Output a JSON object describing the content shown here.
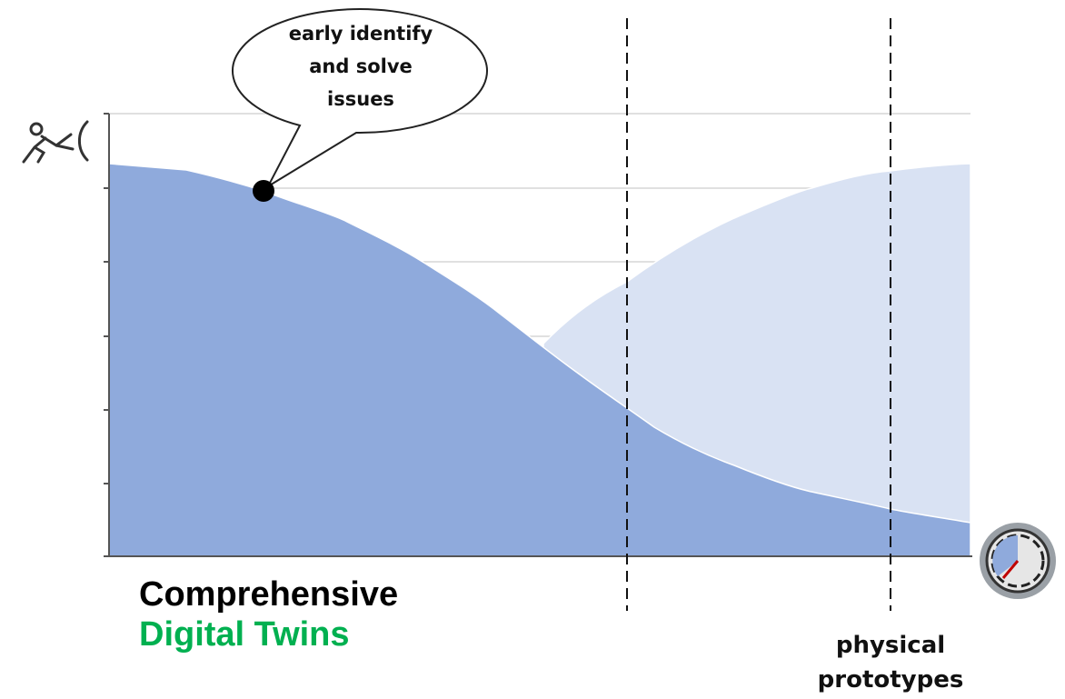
{
  "callout": {
    "lines": [
      "early identify",
      "and solve",
      "issues"
    ]
  },
  "legend": {
    "line1": "Comprehensive",
    "line2": "Digital Twins"
  },
  "marker_label": {
    "lines": [
      "physical",
      "prototypes"
    ]
  }
}
